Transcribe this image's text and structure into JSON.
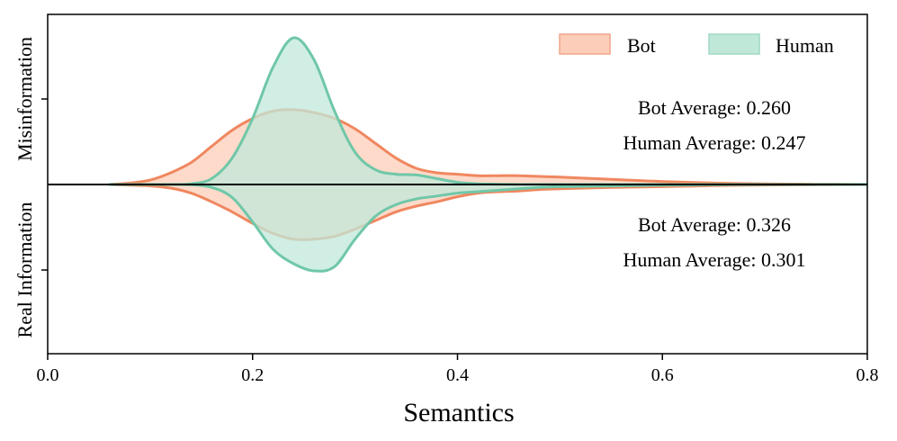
{
  "chart_data": {
    "type": "area",
    "xlabel": "Semantics",
    "xlim": [
      0.0,
      0.8
    ],
    "x_ticks": [
      "0.0",
      "0.2",
      "0.4",
      "0.6",
      "0.8"
    ],
    "x_tick_values": [
      0.0,
      0.2,
      0.4,
      0.6,
      0.8
    ],
    "y_groups": [
      "Misinformation",
      "Real Information"
    ],
    "legend": {
      "position": "top-right",
      "entries": [
        "Bot",
        "Human"
      ]
    },
    "colors": {
      "Bot": "#f0875f",
      "Human": "#6fc7a8",
      "Bot_fill": "#fccdb8",
      "Human_fill": "#c0e8d9"
    },
    "annotations": {
      "misinformation": [
        "Bot Average: 0.260",
        "Human Average: 0.247"
      ],
      "real": [
        "Bot Average: 0.326",
        "Human Average: 0.301"
      ]
    },
    "x": [
      0.06,
      0.08,
      0.1,
      0.12,
      0.14,
      0.16,
      0.18,
      0.2,
      0.22,
      0.24,
      0.26,
      0.28,
      0.3,
      0.32,
      0.34,
      0.36,
      0.38,
      0.4,
      0.42,
      0.44,
      0.46,
      0.48,
      0.5,
      0.55,
      0.6,
      0.65,
      0.7,
      0.75,
      0.8
    ],
    "series": [
      {
        "name": "Bot",
        "group": "Misinformation",
        "values": [
          0.0,
          0.01,
          0.03,
          0.08,
          0.15,
          0.26,
          0.37,
          0.45,
          0.5,
          0.51,
          0.49,
          0.45,
          0.38,
          0.28,
          0.18,
          0.11,
          0.08,
          0.07,
          0.06,
          0.06,
          0.06,
          0.055,
          0.05,
          0.035,
          0.02,
          0.01,
          0.005,
          0.002,
          0.0
        ]
      },
      {
        "name": "Human",
        "group": "Misinformation",
        "values": [
          0.0,
          0.0,
          0.0,
          0.0,
          0.005,
          0.04,
          0.18,
          0.45,
          0.8,
          1.0,
          0.85,
          0.5,
          0.22,
          0.1,
          0.07,
          0.065,
          0.04,
          0.015,
          0.005,
          0.002,
          0.0,
          0.0,
          0.0,
          0.0,
          0.0,
          0.0,
          0.0,
          0.0,
          0.0
        ]
      },
      {
        "name": "Bot",
        "group": "Real Information",
        "values": [
          0.0,
          0.005,
          0.01,
          0.025,
          0.06,
          0.12,
          0.19,
          0.27,
          0.34,
          0.38,
          0.38,
          0.36,
          0.31,
          0.25,
          0.19,
          0.15,
          0.12,
          0.085,
          0.06,
          0.05,
          0.045,
          0.035,
          0.03,
          0.02,
          0.015,
          0.008,
          0.004,
          0.001,
          0.0
        ]
      },
      {
        "name": "Human",
        "group": "Real Information",
        "values": [
          0.0,
          0.0,
          0.0,
          0.0,
          0.002,
          0.02,
          0.09,
          0.26,
          0.45,
          0.55,
          0.6,
          0.57,
          0.38,
          0.22,
          0.14,
          0.1,
          0.08,
          0.06,
          0.05,
          0.04,
          0.03,
          0.02,
          0.015,
          0.01,
          0.005,
          0.002,
          0.0,
          0.0,
          0.0
        ]
      }
    ]
  }
}
